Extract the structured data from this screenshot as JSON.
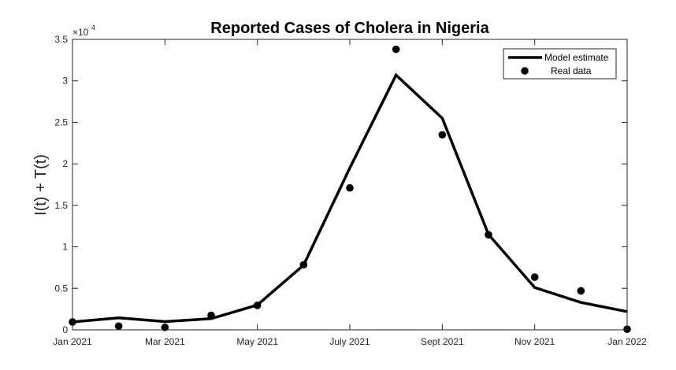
{
  "chart_data": {
    "type": "line",
    "title": "Reported Cases of Cholera in Nigeria",
    "ylabel": "I(t) + T(t)",
    "xlabel": "",
    "y_exponent_label": "×10",
    "y_exponent_power": "4",
    "y_tick_scale": 10000,
    "ylim": [
      0,
      35000
    ],
    "y_ticks": [
      0,
      5000,
      10000,
      15000,
      20000,
      25000,
      30000,
      35000
    ],
    "y_tick_labels": [
      "0",
      "0.5",
      "1",
      "1.5",
      "2",
      "2.5",
      "3",
      "3.5"
    ],
    "x_ticks": [
      {
        "x": 0,
        "label": "Jan 2021"
      },
      {
        "x": 2,
        "label": "Mar 2021"
      },
      {
        "x": 4,
        "label": "May 2021"
      },
      {
        "x": 6,
        "label": "July 2021"
      },
      {
        "x": 8,
        "label": "Sept 2021"
      },
      {
        "x": 10,
        "label": "Nov 2021"
      },
      {
        "x": 12,
        "label": "Jan 2022"
      }
    ],
    "xlim": [
      0,
      12
    ],
    "series": [
      {
        "name": "Model estimate",
        "style": "line",
        "color": "#000000",
        "x": [
          0,
          1,
          2,
          3,
          4,
          5,
          6,
          7,
          8,
          9,
          10,
          11,
          12
        ],
        "y": [
          950,
          1450,
          1000,
          1350,
          3000,
          7800,
          19500,
          30700,
          25500,
          11500,
          5100,
          3300,
          2200
        ]
      },
      {
        "name": "Real data",
        "style": "scatter",
        "color": "#000000",
        "x": [
          0,
          1,
          2,
          3,
          4,
          5,
          6,
          7,
          8,
          9,
          10,
          11,
          12
        ],
        "y": [
          950,
          450,
          300,
          1750,
          2950,
          7850,
          17100,
          33800,
          23500,
          11450,
          6350,
          4700,
          80
        ]
      }
    ],
    "legend_position": "top-right",
    "grid": false
  }
}
